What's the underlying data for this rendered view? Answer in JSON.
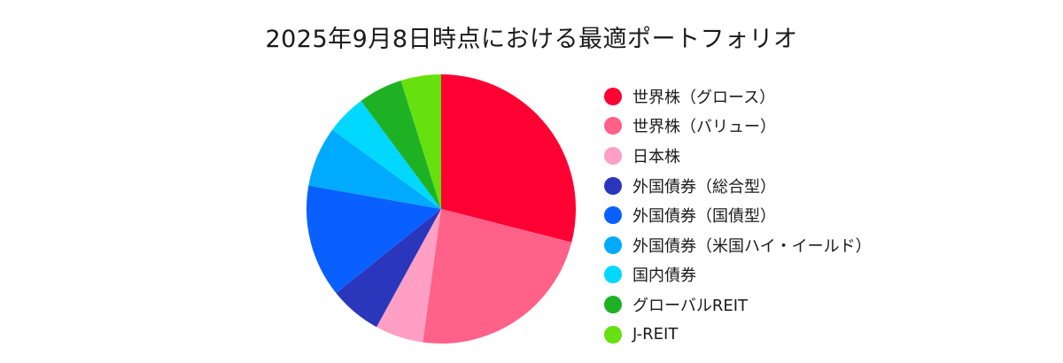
{
  "chart_data": {
    "type": "pie",
    "title": "2025年9月8日時点における最適ポートフォリオ",
    "legend_position": "right",
    "start_angle": "12 o'clock",
    "direction": "clockwise",
    "slices": [
      {
        "label": "世界株（グロース）",
        "value": 30.0,
        "color": "#ff0033"
      },
      {
        "label": "世界株（バリュー）",
        "value": 24.0,
        "color": "#ff6188"
      },
      {
        "label": "日本株",
        "value": 6.0,
        "color": "#ff9fc4"
      },
      {
        "label": "外国債券（総合型）",
        "value": 6.5,
        "color": "#2a36bb"
      },
      {
        "label": "外国債券（国債型）",
        "value": 14.0,
        "color": "#0a60ff"
      },
      {
        "label": "外国債券（米国ハイ・イールド）",
        "value": 7.5,
        "color": "#00aaff"
      },
      {
        "label": "国内債券",
        "value": 5.0,
        "color": "#00d8ff"
      },
      {
        "label": "グローバルREIT",
        "value": 5.5,
        "color": "#1fb124"
      },
      {
        "label": "J-REIT",
        "value": 5.0,
        "color": "#66e00f"
      }
    ]
  }
}
